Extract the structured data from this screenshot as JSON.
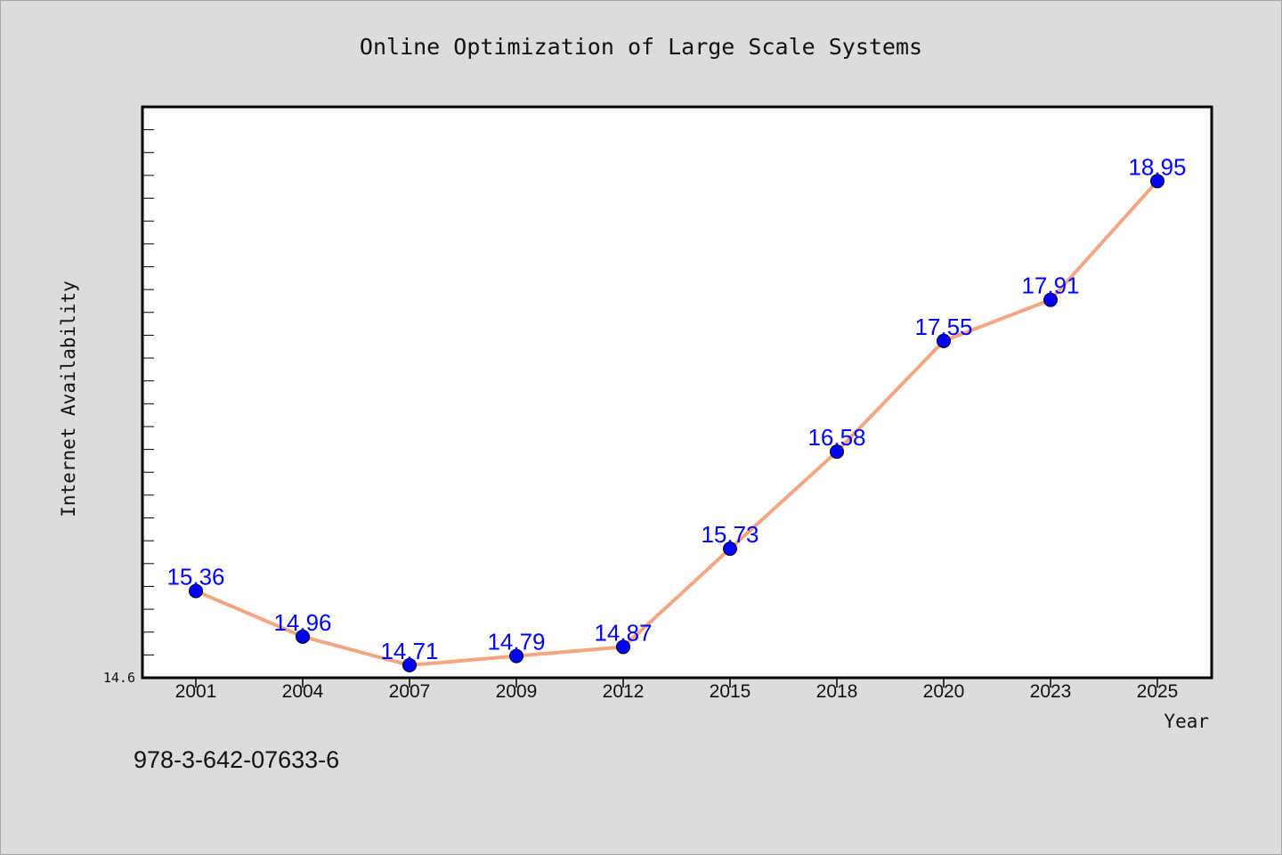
{
  "chart_data": {
    "type": "line",
    "title": "Online Optimization of Large Scale Systems",
    "xlabel": "Year",
    "ylabel": "Internet Availability",
    "categories": [
      "2001",
      "2004",
      "2007",
      "2009",
      "2012",
      "2015",
      "2018",
      "2020",
      "2023",
      "2025"
    ],
    "series": [
      {
        "values": [
          15.36,
          14.96,
          14.71,
          14.79,
          14.87,
          15.73,
          16.58,
          17.55,
          17.91,
          18.95
        ],
        "labels": [
          "15.36",
          "14.96",
          "14.71",
          "14.79",
          "14.87",
          "15.73",
          "16.58",
          "17.55",
          "17.91",
          "18.95"
        ]
      }
    ],
    "ylim": [
      14.6,
      19.6
    ],
    "y_tick_labels": [
      "14.6"
    ],
    "grid": false,
    "legend": "none",
    "colors": {
      "line": "#f4a582",
      "marker": "#0000ff",
      "data_label": "#0000ff",
      "plot_background": "#ffffff",
      "page_background": "#dcdcdc"
    }
  },
  "footnote": "978-3-642-07633-6"
}
